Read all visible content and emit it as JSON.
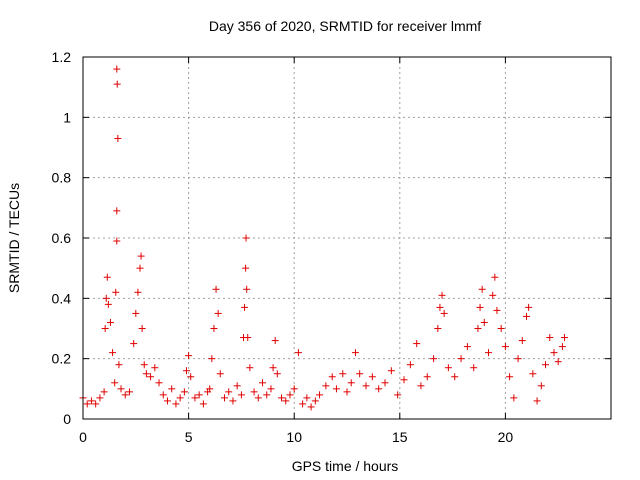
{
  "chart_data": {
    "type": "scatter",
    "title": "Day 356 of 2020, SRMTID for receiver lmmf",
    "xlabel": "GPS time / hours",
    "ylabel": "SRMTID / TECUs",
    "xlim": [
      0,
      25
    ],
    "ylim": [
      0,
      1.2
    ],
    "xticks": [
      0,
      5,
      10,
      15,
      20
    ],
    "xtick_labels": [
      "0",
      "5",
      "10",
      "15",
      "20"
    ],
    "yticks": [
      0,
      0.2,
      0.4,
      0.6,
      0.8,
      1.0,
      1.2
    ],
    "ytick_labels": [
      "0",
      "0.2",
      "0.4",
      "0.6",
      "0.8",
      "1",
      "1.2"
    ],
    "grid": true,
    "marker": "+",
    "color": "#e00000",
    "series": [
      {
        "name": "SRMTID",
        "points": [
          [
            0.0,
            0.07
          ],
          [
            0.2,
            0.05
          ],
          [
            0.4,
            0.06
          ],
          [
            0.6,
            0.05
          ],
          [
            0.8,
            0.07
          ],
          [
            1.0,
            0.09
          ],
          [
            1.05,
            0.3
          ],
          [
            1.1,
            0.4
          ],
          [
            1.15,
            0.47
          ],
          [
            1.2,
            0.38
          ],
          [
            1.3,
            0.32
          ],
          [
            1.4,
            0.22
          ],
          [
            1.5,
            0.12
          ],
          [
            1.55,
            0.42
          ],
          [
            1.6,
            1.16
          ],
          [
            1.62,
            1.11
          ],
          [
            1.65,
            0.93
          ],
          [
            1.6,
            0.69
          ],
          [
            1.6,
            0.59
          ],
          [
            1.7,
            0.18
          ],
          [
            1.8,
            0.1
          ],
          [
            2.0,
            0.08
          ],
          [
            2.2,
            0.09
          ],
          [
            2.4,
            0.25
          ],
          [
            2.5,
            0.35
          ],
          [
            2.6,
            0.42
          ],
          [
            2.7,
            0.5
          ],
          [
            2.75,
            0.54
          ],
          [
            2.8,
            0.3
          ],
          [
            2.9,
            0.18
          ],
          [
            3.0,
            0.15
          ],
          [
            3.2,
            0.14
          ],
          [
            3.4,
            0.17
          ],
          [
            3.6,
            0.12
          ],
          [
            3.8,
            0.08
          ],
          [
            4.0,
            0.06
          ],
          [
            4.2,
            0.1
          ],
          [
            4.4,
            0.05
          ],
          [
            4.6,
            0.07
          ],
          [
            4.8,
            0.09
          ],
          [
            4.9,
            0.16
          ],
          [
            5.0,
            0.21
          ],
          [
            5.1,
            0.14
          ],
          [
            5.3,
            0.07
          ],
          [
            5.5,
            0.08
          ],
          [
            5.7,
            0.05
          ],
          [
            5.9,
            0.09
          ],
          [
            6.0,
            0.1
          ],
          [
            6.1,
            0.2
          ],
          [
            6.2,
            0.3
          ],
          [
            6.3,
            0.43
          ],
          [
            6.4,
            0.35
          ],
          [
            6.5,
            0.15
          ],
          [
            6.7,
            0.07
          ],
          [
            6.9,
            0.09
          ],
          [
            7.1,
            0.06
          ],
          [
            7.3,
            0.11
          ],
          [
            7.5,
            0.08
          ],
          [
            7.6,
            0.27
          ],
          [
            7.65,
            0.37
          ],
          [
            7.7,
            0.5
          ],
          [
            7.72,
            0.6
          ],
          [
            7.75,
            0.43
          ],
          [
            7.8,
            0.27
          ],
          [
            7.9,
            0.17
          ],
          [
            8.1,
            0.09
          ],
          [
            8.3,
            0.07
          ],
          [
            8.5,
            0.12
          ],
          [
            8.7,
            0.08
          ],
          [
            8.9,
            0.1
          ],
          [
            9.0,
            0.17
          ],
          [
            9.1,
            0.26
          ],
          [
            9.2,
            0.15
          ],
          [
            9.4,
            0.07
          ],
          [
            9.6,
            0.06
          ],
          [
            9.8,
            0.08
          ],
          [
            10.0,
            0.1
          ],
          [
            10.2,
            0.22
          ],
          [
            10.4,
            0.05
          ],
          [
            10.6,
            0.07
          ],
          [
            10.8,
            0.04
          ],
          [
            11.0,
            0.06
          ],
          [
            11.2,
            0.08
          ],
          [
            11.5,
            0.11
          ],
          [
            11.8,
            0.14
          ],
          [
            12.0,
            0.1
          ],
          [
            12.3,
            0.15
          ],
          [
            12.5,
            0.09
          ],
          [
            12.7,
            0.12
          ],
          [
            12.9,
            0.22
          ],
          [
            13.1,
            0.15
          ],
          [
            13.4,
            0.11
          ],
          [
            13.7,
            0.14
          ],
          [
            14.0,
            0.1
          ],
          [
            14.3,
            0.12
          ],
          [
            14.6,
            0.16
          ],
          [
            14.9,
            0.08
          ],
          [
            15.2,
            0.13
          ],
          [
            15.5,
            0.18
          ],
          [
            15.8,
            0.25
          ],
          [
            16.0,
            0.11
          ],
          [
            16.3,
            0.14
          ],
          [
            16.6,
            0.2
          ],
          [
            16.8,
            0.3
          ],
          [
            16.9,
            0.37
          ],
          [
            17.0,
            0.41
          ],
          [
            17.1,
            0.35
          ],
          [
            17.3,
            0.17
          ],
          [
            17.6,
            0.14
          ],
          [
            17.9,
            0.2
          ],
          [
            18.2,
            0.24
          ],
          [
            18.5,
            0.17
          ],
          [
            18.7,
            0.3
          ],
          [
            18.8,
            0.37
          ],
          [
            18.9,
            0.43
          ],
          [
            19.0,
            0.32
          ],
          [
            19.2,
            0.22
          ],
          [
            19.4,
            0.41
          ],
          [
            19.5,
            0.47
          ],
          [
            19.6,
            0.36
          ],
          [
            19.8,
            0.3
          ],
          [
            20.0,
            0.24
          ],
          [
            20.2,
            0.14
          ],
          [
            20.4,
            0.07
          ],
          [
            20.6,
            0.2
          ],
          [
            20.8,
            0.26
          ],
          [
            21.0,
            0.34
          ],
          [
            21.1,
            0.37
          ],
          [
            21.3,
            0.15
          ],
          [
            21.5,
            0.06
          ],
          [
            21.7,
            0.11
          ],
          [
            21.9,
            0.18
          ],
          [
            22.1,
            0.27
          ],
          [
            22.3,
            0.22
          ],
          [
            22.5,
            0.19
          ],
          [
            22.7,
            0.24
          ],
          [
            22.8,
            0.27
          ]
        ]
      }
    ]
  }
}
